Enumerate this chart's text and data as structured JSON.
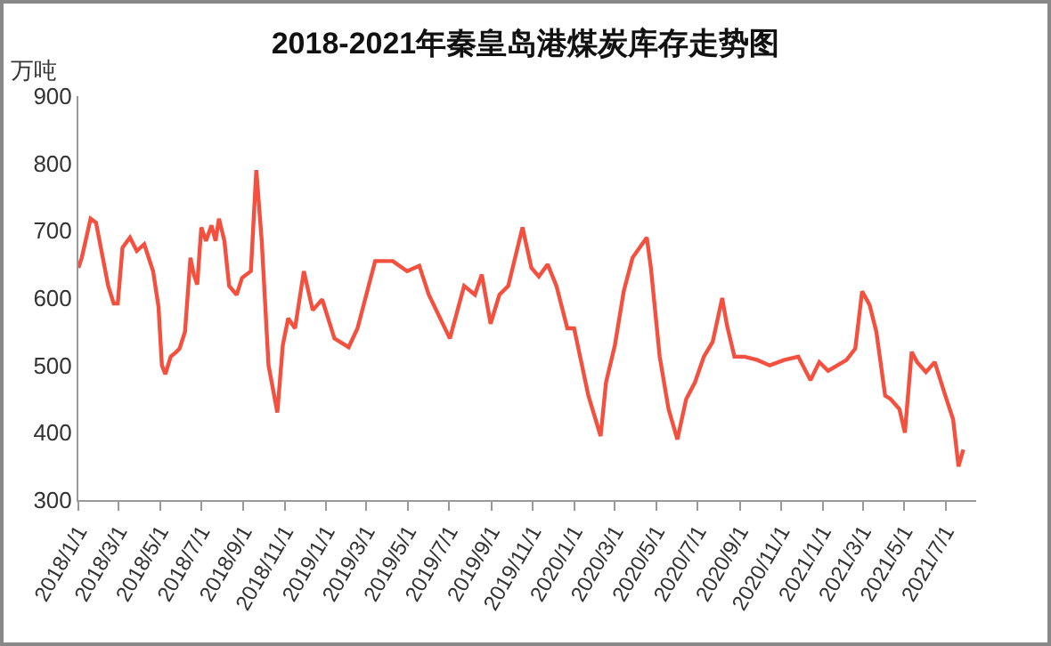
{
  "chart_data": {
    "type": "line",
    "title": "2018-2021年秦皇岛港煤炭库存走势图",
    "ylabel": "万吨",
    "grid": false,
    "marker": "none",
    "line_style": "solid",
    "x": [
      "2018-01-01",
      "2018-01-06",
      "2018-01-19",
      "2018-01-27",
      "2018-02-14",
      "2018-02-22",
      "2018-02-28",
      "2018-03-07",
      "2018-03-18",
      "2018-03-28",
      "2018-04-08",
      "2018-04-21",
      "2018-04-29",
      "2018-05-04",
      "2018-05-09",
      "2018-05-17",
      "2018-05-25",
      "2018-05-30",
      "2018-06-07",
      "2018-06-15",
      "2018-06-20",
      "2018-06-25",
      "2018-07-01",
      "2018-07-08",
      "2018-07-16",
      "2018-07-22",
      "2018-07-27",
      "2018-08-04",
      "2018-08-11",
      "2018-08-22",
      "2018-08-30",
      "2018-09-12",
      "2018-09-20",
      "2018-09-28",
      "2018-10-08",
      "2018-10-21",
      "2018-10-29",
      "2018-11-06",
      "2018-11-16",
      "2018-11-29",
      "2018-12-12",
      "2018-12-26",
      "2019-01-13",
      "2019-02-03",
      "2019-02-16",
      "2019-03-14",
      "2019-04-09",
      "2019-04-30",
      "2019-05-18",
      "2019-06-01",
      "2019-07-02",
      "2019-07-23",
      "2019-08-08",
      "2019-08-18",
      "2019-08-31",
      "2019-09-13",
      "2019-09-26",
      "2019-10-17",
      "2019-10-30",
      "2019-11-10",
      "2019-11-23",
      "2019-12-06",
      "2019-12-22",
      "2020-01-01",
      "2020-01-22",
      "2020-02-09",
      "2020-02-17",
      "2020-03-01",
      "2020-03-14",
      "2020-03-27",
      "2020-04-10",
      "2020-04-17",
      "2020-04-23",
      "2020-05-06",
      "2020-05-19",
      "2020-06-01",
      "2020-06-14",
      "2020-06-27",
      "2020-07-10",
      "2020-07-23",
      "2020-08-06",
      "2020-08-13",
      "2020-08-24",
      "2020-09-08",
      "2020-09-27",
      "2020-10-15",
      "2020-11-05",
      "2020-11-26",
      "2020-12-14",
      "2020-12-27",
      "2021-01-09",
      "2021-02-05",
      "2021-02-18",
      "2021-02-28",
      "2021-03-11",
      "2021-03-21",
      "2021-04-03",
      "2021-04-11",
      "2021-04-24",
      "2021-05-02",
      "2021-05-12",
      "2021-05-20",
      "2021-06-02",
      "2021-06-15",
      "2021-06-29",
      "2021-07-12",
      "2021-07-20",
      "2021-07-27"
    ],
    "series": [
      {
        "color": "#f4503f",
        "values": [
          645,
          660,
          718,
          712,
          618,
          592,
          592,
          675,
          690,
          670,
          680,
          640,
          587,
          500,
          487,
          513,
          520,
          525,
          550,
          660,
          635,
          620,
          705,
          685,
          708,
          685,
          718,
          685,
          618,
          605,
          630,
          640,
          790,
          685,
          500,
          430,
          530,
          570,
          555,
          640,
          582,
          598,
          540,
          527,
          555,
          655,
          655,
          640,
          648,
          605,
          540,
          618,
          605,
          635,
          562,
          605,
          618,
          705,
          645,
          632,
          650,
          618,
          555,
          555,
          455,
          395,
          475,
          530,
          610,
          660,
          680,
          690,
          645,
          513,
          435,
          390,
          450,
          475,
          513,
          535,
          600,
          560,
          513,
          513,
          508,
          500,
          508,
          513,
          478,
          505,
          492,
          508,
          525,
          610,
          590,
          550,
          455,
          450,
          435,
          400,
          520,
          505,
          490,
          505,
          460,
          420,
          350,
          375
        ]
      }
    ],
    "xlim": [
      "2018-01-01",
      "2021-08-15"
    ],
    "xticks": [
      {
        "value": "2018-01-01",
        "label": "2018/1/1"
      },
      {
        "value": "2018-03-01",
        "label": "2018/3/1"
      },
      {
        "value": "2018-05-01",
        "label": "2018/5/1"
      },
      {
        "value": "2018-07-01",
        "label": "2018/7/1"
      },
      {
        "value": "2018-09-01",
        "label": "2018/9/1"
      },
      {
        "value": "2018-11-01",
        "label": "2018/11/1"
      },
      {
        "value": "2019-01-01",
        "label": "2019/1/1"
      },
      {
        "value": "2019-03-01",
        "label": "2019/3/1"
      },
      {
        "value": "2019-05-01",
        "label": "2019/5/1"
      },
      {
        "value": "2019-07-01",
        "label": "2019/7/1"
      },
      {
        "value": "2019-09-01",
        "label": "2019/9/1"
      },
      {
        "value": "2019-11-01",
        "label": "2019/11/1"
      },
      {
        "value": "2020-01-01",
        "label": "2020/1/1"
      },
      {
        "value": "2020-03-01",
        "label": "2020/3/1"
      },
      {
        "value": "2020-05-01",
        "label": "2020/5/1"
      },
      {
        "value": "2020-07-01",
        "label": "2020/7/1"
      },
      {
        "value": "2020-09-01",
        "label": "2020/9/1"
      },
      {
        "value": "2020-11-01",
        "label": "2020/11/1"
      },
      {
        "value": "2021-01-01",
        "label": "2021/1/1"
      },
      {
        "value": "2021-03-01",
        "label": "2021/3/1"
      },
      {
        "value": "2021-05-01",
        "label": "2021/5/1"
      },
      {
        "value": "2021-07-01",
        "label": "2021/7/1"
      }
    ],
    "ylim": [
      300,
      900
    ],
    "yticks": [
      300,
      400,
      500,
      600,
      700,
      800,
      900
    ]
  }
}
